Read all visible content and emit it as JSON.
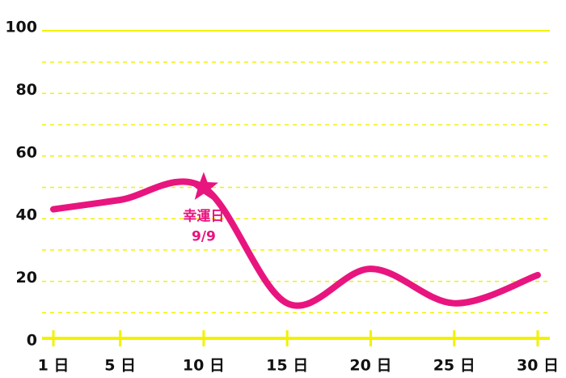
{
  "chart_data": {
    "type": "line",
    "x": [
      1,
      5,
      10,
      15,
      20,
      25,
      30
    ],
    "series": [
      {
        "color": "#e8157f",
        "values": [
          43,
          46,
          50,
          13,
          24,
          13,
          22
        ]
      }
    ],
    "xlim": [
      1,
      30
    ],
    "xticks": [
      {
        "value": 1,
        "label": "1 日"
      },
      {
        "value": 5,
        "label": "5 日"
      },
      {
        "value": 10,
        "label": "10 日"
      },
      {
        "value": 15,
        "label": "15 日"
      },
      {
        "value": 20,
        "label": "20 日"
      },
      {
        "value": 25,
        "label": "25 日"
      },
      {
        "value": 30,
        "label": "30 日"
      }
    ],
    "ylim": [
      0,
      100
    ],
    "yticks": [
      0,
      20,
      40,
      60,
      80,
      100
    ],
    "minor_yticks": [
      10,
      30,
      50,
      70,
      90
    ],
    "grid_color": "#f2f200",
    "annotation": {
      "x": 10,
      "y": 50,
      "lines": [
        "幸運日",
        "9/9"
      ]
    }
  }
}
